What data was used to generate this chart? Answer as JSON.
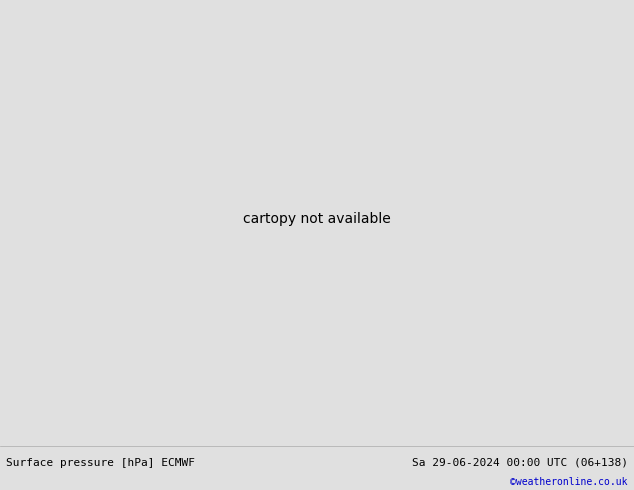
{
  "title_left": "Surface pressure [hPa] ECMWF",
  "title_right": "Sa 29-06-2024 00:00 UTC (06+138)",
  "credit": "©weatheronline.co.uk",
  "footer_bg": "#e0e0e0",
  "footer_text_color": "#000000",
  "credit_color": "#0000cc",
  "fig_width": 6.34,
  "fig_height": 4.9,
  "dpi": 100,
  "land_color": "#c8e6a0",
  "ocean_color": "#d8d8d8",
  "coast_color": "#888888",
  "coast_lw": 0.4,
  "black_lw": 1.6,
  "blue_lw": 1.2,
  "red_lw": 1.2,
  "label_fs": 6,
  "lon_min": -28,
  "lon_max": 48,
  "lat_min": 27,
  "lat_max": 72
}
